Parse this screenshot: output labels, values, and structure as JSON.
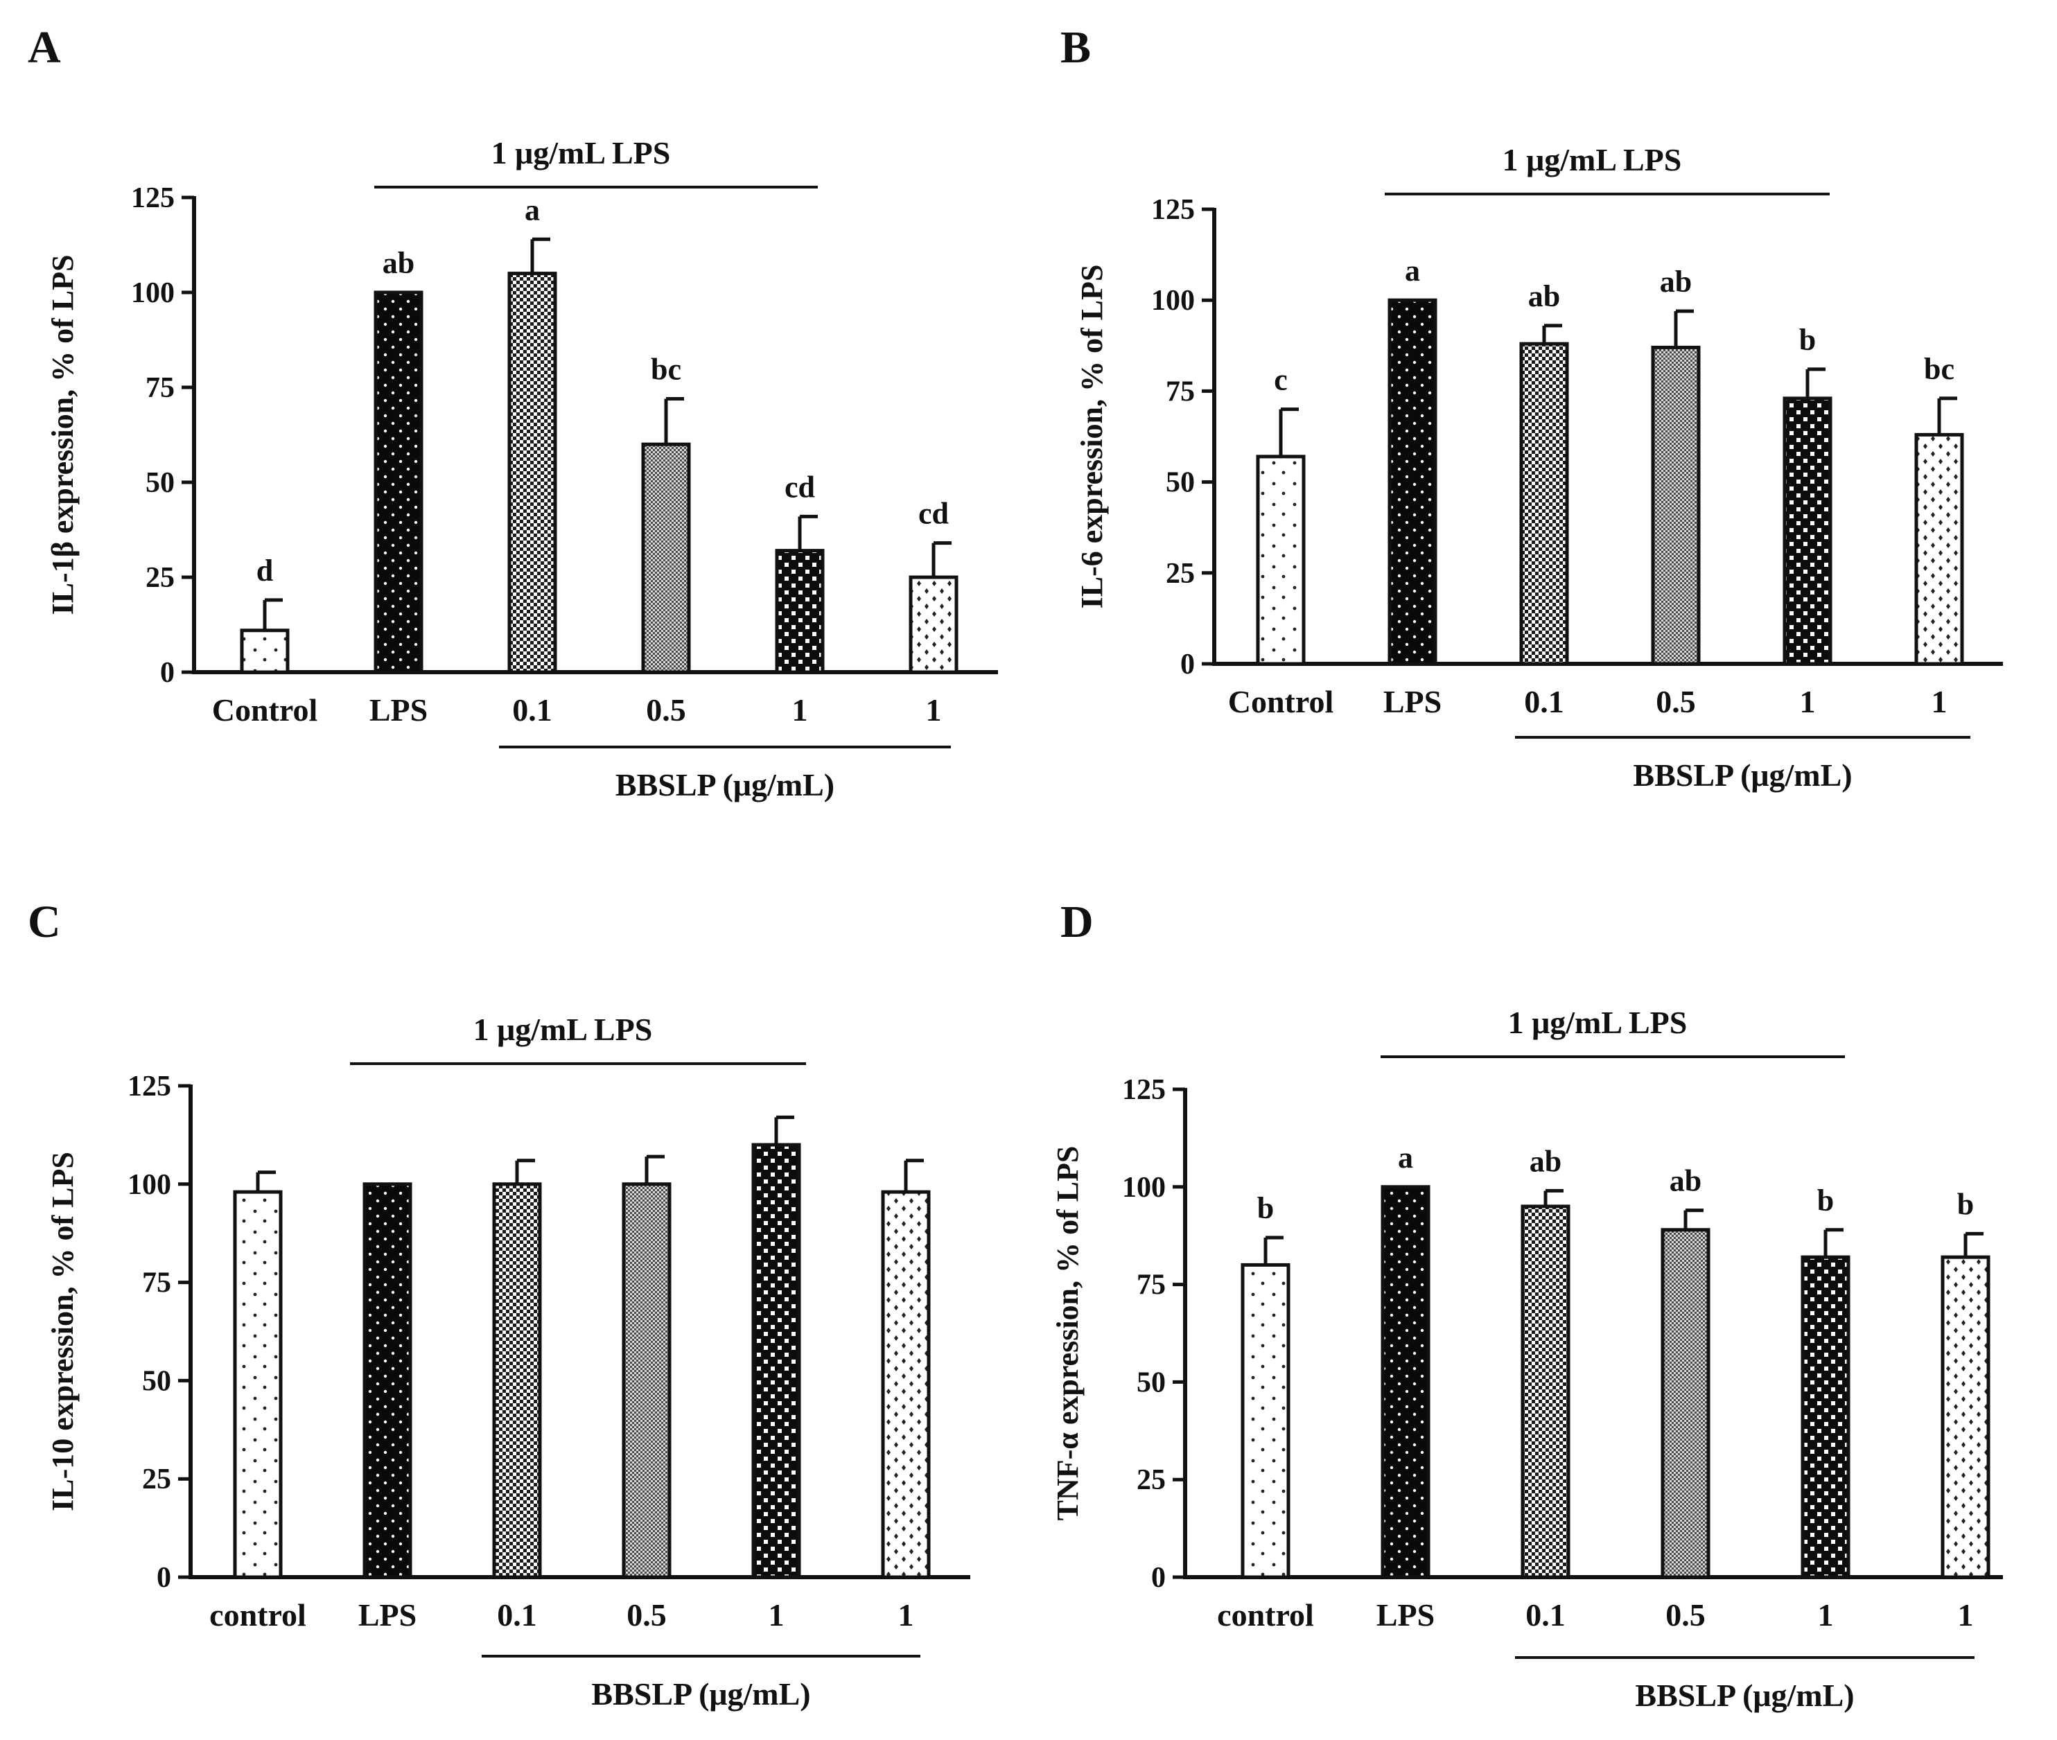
{
  "figure": {
    "panels": [
      {
        "letter": "A"
      },
      {
        "letter": "B"
      },
      {
        "letter": "C"
      },
      {
        "letter": "D"
      }
    ]
  },
  "chart_data": [
    {
      "type": "bar",
      "panel": "A",
      "title": "",
      "ylabel": "IL-1β expression, % of LPS",
      "ylim": [
        0,
        125
      ],
      "yticks": [
        0,
        25,
        50,
        75,
        100,
        125
      ],
      "categories": [
        "Control",
        "LPS",
        "0.1",
        "0.5",
        "1",
        "1"
      ],
      "values": [
        11,
        100,
        105,
        60,
        32,
        25
      ],
      "errors": [
        8,
        0,
        9,
        12,
        9,
        9
      ],
      "significance": [
        "d",
        "ab",
        "a",
        "bc",
        "cd",
        "cd"
      ],
      "patterns": [
        "sparse-dots",
        "black-dots",
        "dense-grid",
        "fine-grid",
        "black-checker",
        "diamond"
      ],
      "top_bracket_label": "1 μg/mL LPS",
      "bottom_bracket_label": "BBSLP (μg/mL)",
      "grid": false,
      "legend": "none"
    },
    {
      "type": "bar",
      "panel": "B",
      "title": "",
      "ylabel": "IL-6 expression, % of LPS",
      "ylim": [
        0,
        125
      ],
      "yticks": [
        0,
        25,
        50,
        75,
        100,
        125
      ],
      "categories": [
        "Control",
        "LPS",
        "0.1",
        "0.5",
        "1",
        "1"
      ],
      "values": [
        57,
        100,
        88,
        87,
        73,
        63
      ],
      "errors": [
        13,
        0,
        5,
        10,
        8,
        10
      ],
      "significance": [
        "c",
        "a",
        "ab",
        "ab",
        "b",
        "bc"
      ],
      "patterns": [
        "sparse-dots",
        "black-dots",
        "dense-grid",
        "fine-grid",
        "black-checker",
        "diamond"
      ],
      "top_bracket_label": "1 μg/mL LPS",
      "bottom_bracket_label": "BBSLP (μg/mL)",
      "grid": false,
      "legend": "none"
    },
    {
      "type": "bar",
      "panel": "C",
      "title": "",
      "ylabel": "IL-10 expression, % of LPS",
      "ylim": [
        0,
        125
      ],
      "yticks": [
        0,
        25,
        50,
        75,
        100,
        125
      ],
      "categories": [
        "control",
        "LPS",
        "0.1",
        "0.5",
        "1",
        "1"
      ],
      "values": [
        98,
        100,
        100,
        100,
        110,
        98
      ],
      "errors": [
        5,
        0,
        6,
        7,
        7,
        8
      ],
      "significance": [
        "",
        "",
        "",
        "",
        "",
        ""
      ],
      "patterns": [
        "sparse-dots",
        "black-dots",
        "dense-grid",
        "fine-grid",
        "black-checker",
        "diamond"
      ],
      "top_bracket_label": "1 μg/mL LPS",
      "bottom_bracket_label": "BBSLP (μg/mL)",
      "grid": false,
      "legend": "none"
    },
    {
      "type": "bar",
      "panel": "D",
      "title": "",
      "ylabel": "TNF-α expression, % of LPS",
      "ylim": [
        0,
        125
      ],
      "yticks": [
        0,
        25,
        50,
        75,
        100,
        125
      ],
      "categories": [
        "control",
        "LPS",
        "0.1",
        "0.5",
        "1",
        "1"
      ],
      "values": [
        80,
        100,
        95,
        89,
        82,
        82
      ],
      "errors": [
        7,
        0,
        4,
        5,
        7,
        6
      ],
      "significance": [
        "b",
        "a",
        "ab",
        "ab",
        "b",
        "b"
      ],
      "patterns": [
        "sparse-dots",
        "black-dots",
        "dense-grid",
        "fine-grid",
        "black-checker",
        "diamond"
      ],
      "top_bracket_label": "1 μg/mL LPS",
      "bottom_bracket_label": "BBSLP (μg/mL)",
      "grid": false,
      "legend": "none"
    }
  ]
}
